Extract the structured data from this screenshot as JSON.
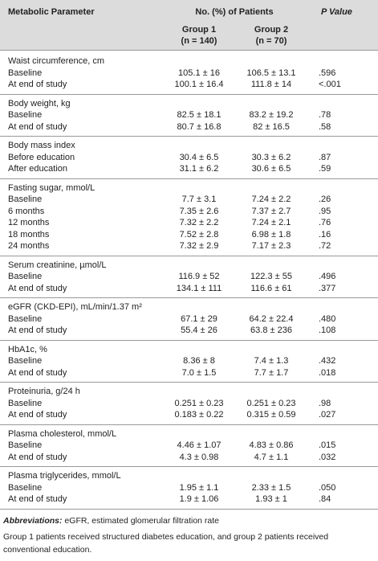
{
  "header": {
    "parameter": "Metabolic Parameter",
    "patients": "No. (%) of Patients",
    "p_value": "P Value",
    "group1": {
      "name": "Group 1",
      "n": "(n = 140)"
    },
    "group2": {
      "name": "Group 2",
      "n": "(n = 70)"
    }
  },
  "sections": [
    {
      "title": "Waist circumference, cm",
      "rows": [
        [
          "Baseline",
          "105.1 ± 16",
          "106.5 ± 13.1",
          ".596"
        ],
        [
          "At end of study",
          "100.1 ± 16.4",
          "111.8 ± 14",
          "<.001"
        ]
      ]
    },
    {
      "title": "Body weight, kg",
      "rows": [
        [
          "Baseline",
          "82.5 ± 18.1",
          "83.2 ± 19.2",
          ".78"
        ],
        [
          "At end of study",
          "80.7 ± 16.8",
          "82 ± 16.5",
          ".58"
        ]
      ]
    },
    {
      "title": "Body mass index",
      "rows": [
        [
          "Before education",
          "30.4 ± 6.5",
          "30.3 ± 6.2",
          ".87"
        ],
        [
          "After education",
          "31.1 ± 6.2",
          "30.6 ± 6.5",
          ".59"
        ]
      ]
    },
    {
      "title": "Fasting sugar, mmol/L",
      "rows": [
        [
          "Baseline",
          "7.7 ± 3.1",
          "7.24 ± 2.2",
          ".26"
        ],
        [
          "6 months",
          "7.35 ± 2.6",
          "7.37 ± 2.7",
          ".95"
        ],
        [
          "12 months",
          "7.32 ± 2.2",
          "7.24 ± 2.1",
          ".76"
        ],
        [
          "18 months",
          "7.52 ± 2.8",
          "6.98 ± 1.8",
          ".16"
        ],
        [
          "24 months",
          "7.32 ± 2.9",
          "7.17 ± 2.3",
          ".72"
        ]
      ]
    },
    {
      "title": "Serum creatinine, µmol/L",
      "rows": [
        [
          "Baseline",
          "116.9 ± 52",
          "122.3 ± 55",
          ".496"
        ],
        [
          "At end of study",
          "134.1 ± 111",
          "116.6 ± 61",
          ".377"
        ]
      ]
    },
    {
      "title": "eGFR (CKD-EPI), mL/min/1.37 m²",
      "rows": [
        [
          "Baseline",
          "67.1 ± 29",
          "64.2 ± 22.4",
          ".480"
        ],
        [
          "At end of study",
          "55.4 ± 26",
          "63.8 ± 236",
          ".108"
        ]
      ]
    },
    {
      "title": "HbA1c, %",
      "rows": [
        [
          "Baseline",
          "8.36 ± 8",
          "7.4 ± 1.3",
          ".432"
        ],
        [
          "At end of study",
          "7.0 ± 1.5",
          "7.7 ± 1.7",
          ".018"
        ]
      ]
    },
    {
      "title": "Proteinuria, g/24 h",
      "rows": [
        [
          "Baseline",
          "0.251 ± 0.23",
          "0.251 ± 0.23",
          ".98"
        ],
        [
          "At end of study",
          "0.183 ± 0.22",
          "0.315 ± 0.59",
          ".027"
        ]
      ]
    },
    {
      "title": "Plasma cholesterol, mmol/L",
      "rows": [
        [
          "Baseline",
          "4.46 ± 1.07",
          "4.83 ± 0.86",
          ".015"
        ],
        [
          "At end of study",
          "4.3 ± 0.98",
          "4.7 ± 1.1",
          ".032"
        ]
      ]
    },
    {
      "title": "Plasma triglycerides, mmol/L",
      "rows": [
        [
          "Baseline",
          "1.95 ± 1.1",
          "2.33 ± 1.5",
          ".050"
        ],
        [
          "At end of study",
          "1.9 ± 1.06",
          "1.93 ± 1",
          ".84"
        ]
      ]
    }
  ],
  "footnotes": {
    "abbreviations_label": "Abbreviations:",
    "abbreviations": " eGFR, estimated glomerular filtration rate",
    "note": "Group 1 patients received structured diabetes education, and group 2 patients received conventional education."
  }
}
